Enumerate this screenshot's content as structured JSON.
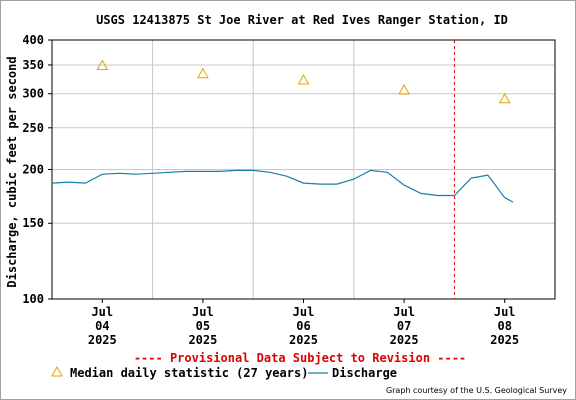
{
  "chart_data": {
    "type": "line",
    "title": "USGS 12413875 St Joe River at Red Ives Ranger Station, ID",
    "ylabel": "Discharge, cubic feet per second",
    "yscale": "log",
    "ylim": [
      100,
      400
    ],
    "yticks": [
      100,
      150,
      200,
      250,
      300,
      350,
      400
    ],
    "xlim": [
      "2025-07-03 12:00",
      "2025-07-08 12:00"
    ],
    "xticks": [
      {
        "date": "2025-07-04",
        "line1": "Jul",
        "line2": "04",
        "line3": "2025"
      },
      {
        "date": "2025-07-05",
        "line1": "Jul",
        "line2": "05",
        "line3": "2025"
      },
      {
        "date": "2025-07-06",
        "line1": "Jul",
        "line2": "06",
        "line3": "2025"
      },
      {
        "date": "2025-07-07",
        "line1": "Jul",
        "line2": "07",
        "line3": "2025"
      },
      {
        "date": "2025-07-08",
        "line1": "Jul",
        "line2": "08",
        "line3": "2025"
      }
    ],
    "grid": true,
    "series": [
      {
        "name": "Median daily statistic (27 years)",
        "marker": "triangle",
        "color": "#e8a000",
        "x": [
          "2025-07-04",
          "2025-07-05",
          "2025-07-06",
          "2025-07-07",
          "2025-07-08"
        ],
        "y": [
          349,
          334,
          323,
          306,
          292
        ]
      },
      {
        "name": "Discharge",
        "color": "#1a7fa8",
        "x": [
          "2025-07-03 12:00",
          "2025-07-03 16:00",
          "2025-07-03 20:00",
          "2025-07-04 00:00",
          "2025-07-04 04:00",
          "2025-07-04 08:00",
          "2025-07-04 12:00",
          "2025-07-04 16:00",
          "2025-07-04 20:00",
          "2025-07-05 00:00",
          "2025-07-05 04:00",
          "2025-07-05 08:00",
          "2025-07-05 12:00",
          "2025-07-05 16:00",
          "2025-07-05 20:00",
          "2025-07-06 00:00",
          "2025-07-06 04:00",
          "2025-07-06 08:00",
          "2025-07-06 12:00",
          "2025-07-06 16:00",
          "2025-07-06 20:00",
          "2025-07-07 00:00",
          "2025-07-07 04:00",
          "2025-07-07 08:00",
          "2025-07-07 12:00",
          "2025-07-07 16:00",
          "2025-07-07 20:00",
          "2025-07-08 00:00",
          "2025-07-08 02:00"
        ],
        "y": [
          186,
          187,
          186,
          195,
          196,
          195,
          196,
          197,
          198,
          198,
          198,
          199,
          199,
          197,
          193,
          186,
          185,
          185,
          190,
          199,
          197,
          184,
          176,
          174,
          174,
          191,
          194,
          172,
          168
        ]
      }
    ],
    "legend_placement": "bottom-left",
    "provisional_notice": "---- Provisional Data Subject to Revision ----",
    "credit": "Graph courtesy of the U.S. Geological Survey"
  },
  "colors": {
    "notice": "#dd0000",
    "discharge": "#1a7fa8",
    "median": "#e8a000",
    "grid": "#c8c8c8",
    "today_line": "#dd0000"
  }
}
